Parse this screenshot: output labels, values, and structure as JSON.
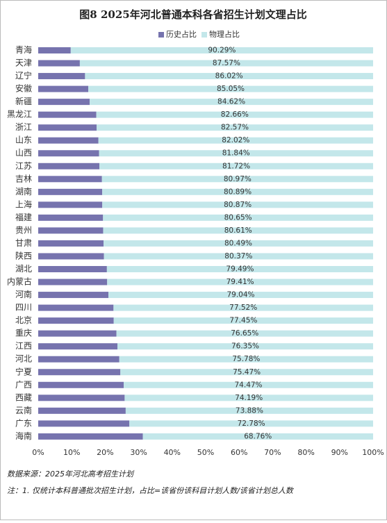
{
  "chart_data": {
    "type": "stacked_barh",
    "title": "图8  2025年河北普通本科各省招生计划文理占比",
    "categories": [
      "青海",
      "天津",
      "辽宁",
      "安徽",
      "新疆",
      "黑龙江",
      "浙江",
      "山东",
      "山西",
      "江苏",
      "吉林",
      "湖南",
      "上海",
      "福建",
      "贵州",
      "甘肃",
      "陕西",
      "湖北",
      "内蒙古",
      "河南",
      "四川",
      "北京",
      "重庆",
      "江西",
      "河北",
      "宁夏",
      "广西",
      "西藏",
      "云南",
      "广东",
      "海南"
    ],
    "series": [
      {
        "name": "历史占比",
        "color": "#7673ae",
        "values": [
          9.71,
          12.43,
          13.98,
          14.95,
          15.38,
          17.34,
          17.43,
          17.98,
          18.16,
          18.28,
          19.03,
          19.11,
          19.13,
          19.35,
          19.39,
          19.51,
          19.63,
          20.51,
          20.59,
          20.96,
          22.48,
          22.55,
          23.35,
          23.65,
          24.22,
          24.53,
          25.53,
          25.81,
          26.12,
          27.22,
          31.24
        ]
      },
      {
        "name": "物理占比",
        "color": "#c3e7ea",
        "values": [
          90.29,
          87.57,
          86.02,
          85.05,
          84.62,
          82.66,
          82.57,
          82.02,
          81.84,
          81.72,
          80.97,
          80.89,
          80.87,
          80.65,
          80.61,
          80.49,
          80.37,
          79.49,
          79.41,
          79.04,
          77.52,
          77.45,
          76.65,
          76.35,
          75.78,
          75.47,
          74.47,
          74.19,
          73.88,
          72.78,
          68.76
        ],
        "value_labels": [
          "90.29%",
          "87.57%",
          "86.02%",
          "85.05%",
          "84.62%",
          "82.66%",
          "82.57%",
          "82.02%",
          "81.84%",
          "81.72%",
          "80.97%",
          "80.89%",
          "80.87%",
          "80.65%",
          "80.61%",
          "80.49%",
          "80.37%",
          "79.49%",
          "79.41%",
          "79.04%",
          "77.52%",
          "77.45%",
          "76.65%",
          "76.35%",
          "75.78%",
          "75.47%",
          "74.47%",
          "74.19%",
          "73.88%",
          "72.78%",
          "68.76%"
        ]
      }
    ],
    "xlim": [
      0,
      100
    ],
    "xticks": [
      {
        "value": 0,
        "label": "0%"
      },
      {
        "value": 10,
        "label": "10%"
      },
      {
        "value": 20,
        "label": "20%"
      },
      {
        "value": 30,
        "label": "30%"
      },
      {
        "value": 40,
        "label": "40%"
      },
      {
        "value": 50,
        "label": "50%"
      },
      {
        "value": 60,
        "label": "60%"
      },
      {
        "value": 70,
        "label": "70%"
      },
      {
        "value": 80,
        "label": "80%"
      },
      {
        "value": 90,
        "label": "90%"
      },
      {
        "value": 100,
        "label": "100%"
      }
    ],
    "grid": false,
    "legend": "top",
    "notes": [
      "数据来源：2025年河北高考招生计划",
      "注：1. 仅统计本科普通批次招生计划，占比=该省份该科目计划人数/该省计划总人数"
    ]
  }
}
